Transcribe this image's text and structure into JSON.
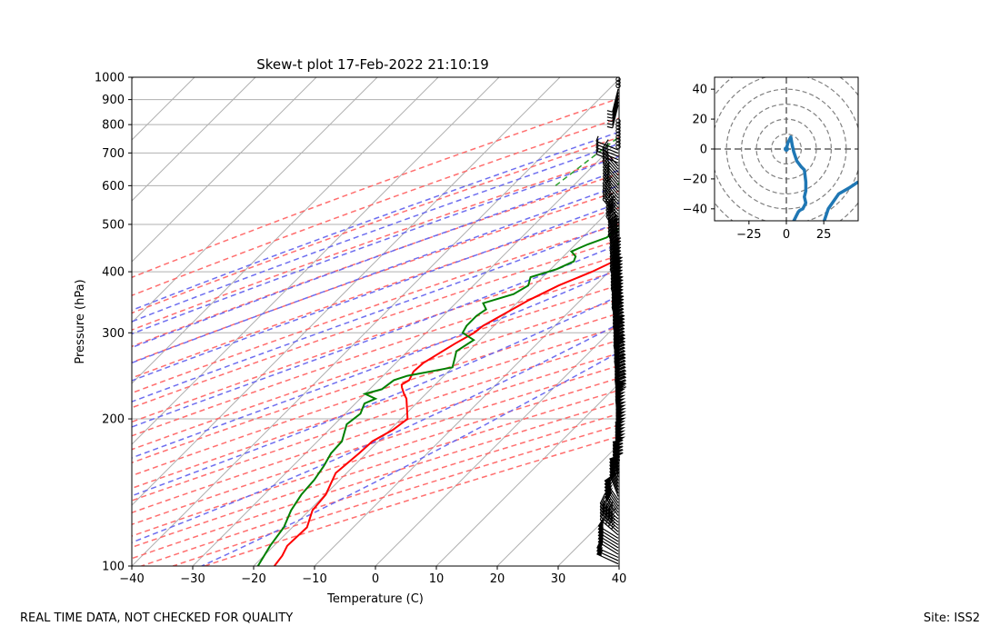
{
  "footer_left": "REAL TIME DATA, NOT CHECKED FOR QUALITY",
  "footer_right": "Site: ISS2",
  "colors": {
    "temperature": "#ff0000",
    "dewpoint": "#008000",
    "dry_adiabat": "#ff6666",
    "moist_adiabat": "#6666ee",
    "mixing_ratio": "#2ca02c",
    "isotherm": "#a6a6a6",
    "hodograph": "#1f77b4"
  },
  "chart_data": [
    {
      "type": "line",
      "title": "Skew-t plot 17-Feb-2022 21:10:19",
      "xlabel": "Temperature (C)",
      "ylabel": "Pressure (hPa)",
      "xlim": [
        -40,
        40
      ],
      "ylim": [
        1000,
        100
      ],
      "y_scale": "log",
      "x_ticks": [
        -40,
        -30,
        -20,
        -10,
        0,
        10,
        20,
        30,
        40
      ],
      "y_ticks": [
        100,
        200,
        300,
        400,
        500,
        600,
        700,
        800,
        900,
        1000
      ],
      "grid": true,
      "series": [
        {
          "name": "Temperature",
          "p": [
            840,
            815,
            790,
            760,
            735,
            715,
            700,
            690,
            680,
            665,
            650,
            625,
            610,
            600,
            585,
            560,
            535,
            505,
            480,
            455,
            430,
            400,
            375,
            350,
            330,
            310,
            300,
            285,
            260,
            250,
            240,
            235,
            232,
            225,
            220,
            210,
            200,
            190,
            180,
            170,
            155,
            140,
            130,
            120,
            110,
            105,
            100
          ],
          "t": [
            7.3,
            4.0,
            1.3,
            -1.6,
            -3.2,
            -3.6,
            -3.2,
            -2.0,
            0.6,
            1.2,
            1.8,
            1.4,
            0.5,
            1.2,
            1.8,
            0.9,
            -0.5,
            -2.7,
            -4.9,
            -7.4,
            -10.0,
            -12.8,
            -16.0,
            -18.5,
            -20.1,
            -21.8,
            -22.1,
            -23.5,
            -25.5,
            -25.7,
            -25.0,
            -25.5,
            -25.0,
            -23.6,
            -22.4,
            -20.7,
            -18.9,
            -19.5,
            -21.0,
            -21.2,
            -21.8,
            -19.9,
            -19.5,
            -17.6,
            -17.8,
            -17.0,
            -16.6
          ]
        },
        {
          "name": "Dewpoint",
          "p": [
            840,
            830,
            820,
            800,
            775,
            745,
            715,
            705,
            695,
            690,
            685,
            680,
            672,
            667,
            655,
            645,
            625,
            610,
            600,
            585,
            570,
            560,
            545,
            530,
            510,
            490,
            470,
            455,
            440,
            430,
            420,
            405,
            390,
            375,
            360,
            345,
            335,
            325,
            310,
            300,
            290,
            275,
            265,
            255,
            245,
            240,
            230,
            225,
            220,
            215,
            205,
            195,
            180,
            170,
            160,
            150,
            140,
            130,
            120,
            110,
            100
          ],
          "t": [
            -11.3,
            -10.5,
            -11.4,
            -10.5,
            -7.8,
            -5.2,
            -4.5,
            -3.5,
            -4.0,
            -5.5,
            -5.5,
            -8.0,
            -20.0,
            -15.0,
            -10.5,
            -11.0,
            -10.0,
            -8.5,
            -11.0,
            -12.0,
            -11.8,
            -13.0,
            -11.5,
            -12.5,
            -14.5,
            -15.5,
            -16.0,
            -18.0,
            -19.5,
            -18.0,
            -17.5,
            -19.0,
            -22.0,
            -21.0,
            -22.0,
            -25.5,
            -24.0,
            -24.5,
            -24.5,
            -24.0,
            -21.0,
            -22.0,
            -21.0,
            -20.0,
            -26.0,
            -27.5,
            -28.0,
            -30.0,
            -27.5,
            -28.5,
            -27.5,
            -28.0,
            -26.0,
            -25.8,
            -24.9,
            -24.2,
            -23.9,
            -23.0,
            -21.4,
            -20.6,
            -19.3
          ]
        }
      ],
      "background_lines": [
        "isotherms",
        "dry adiabats",
        "moist adiabats",
        "mixing ratio"
      ],
      "wind_barbs": "profile of wind barbs drawn at right edge from 1000 to 100 hPa"
    },
    {
      "type": "line",
      "title": "",
      "xlim": [
        -48,
        48
      ],
      "ylim": [
        -48,
        48
      ],
      "x_ticks": [
        -25,
        0,
        25
      ],
      "y_ticks": [
        -40,
        -20,
        0,
        20,
        40
      ],
      "rings": [
        10,
        20,
        30,
        40,
        50,
        60
      ],
      "series": [
        {
          "name": "",
          "u": [
            0,
            1,
            3,
            4,
            5,
            7,
            10,
            12,
            13,
            13,
            12,
            13,
            12,
            11,
            9,
            8,
            7,
            6,
            5,
            4,
            6,
            14,
            22,
            28,
            35,
            42,
            48
          ],
          "v": [
            0,
            4,
            8,
            2,
            -2,
            -8,
            -12,
            -14,
            -22,
            -28,
            -32,
            -36,
            -38,
            -40,
            -41,
            -42,
            -44,
            -46,
            -48,
            -50,
            -55,
            -63,
            -58,
            -40,
            -30,
            -26,
            -22
          ]
        }
      ]
    }
  ]
}
